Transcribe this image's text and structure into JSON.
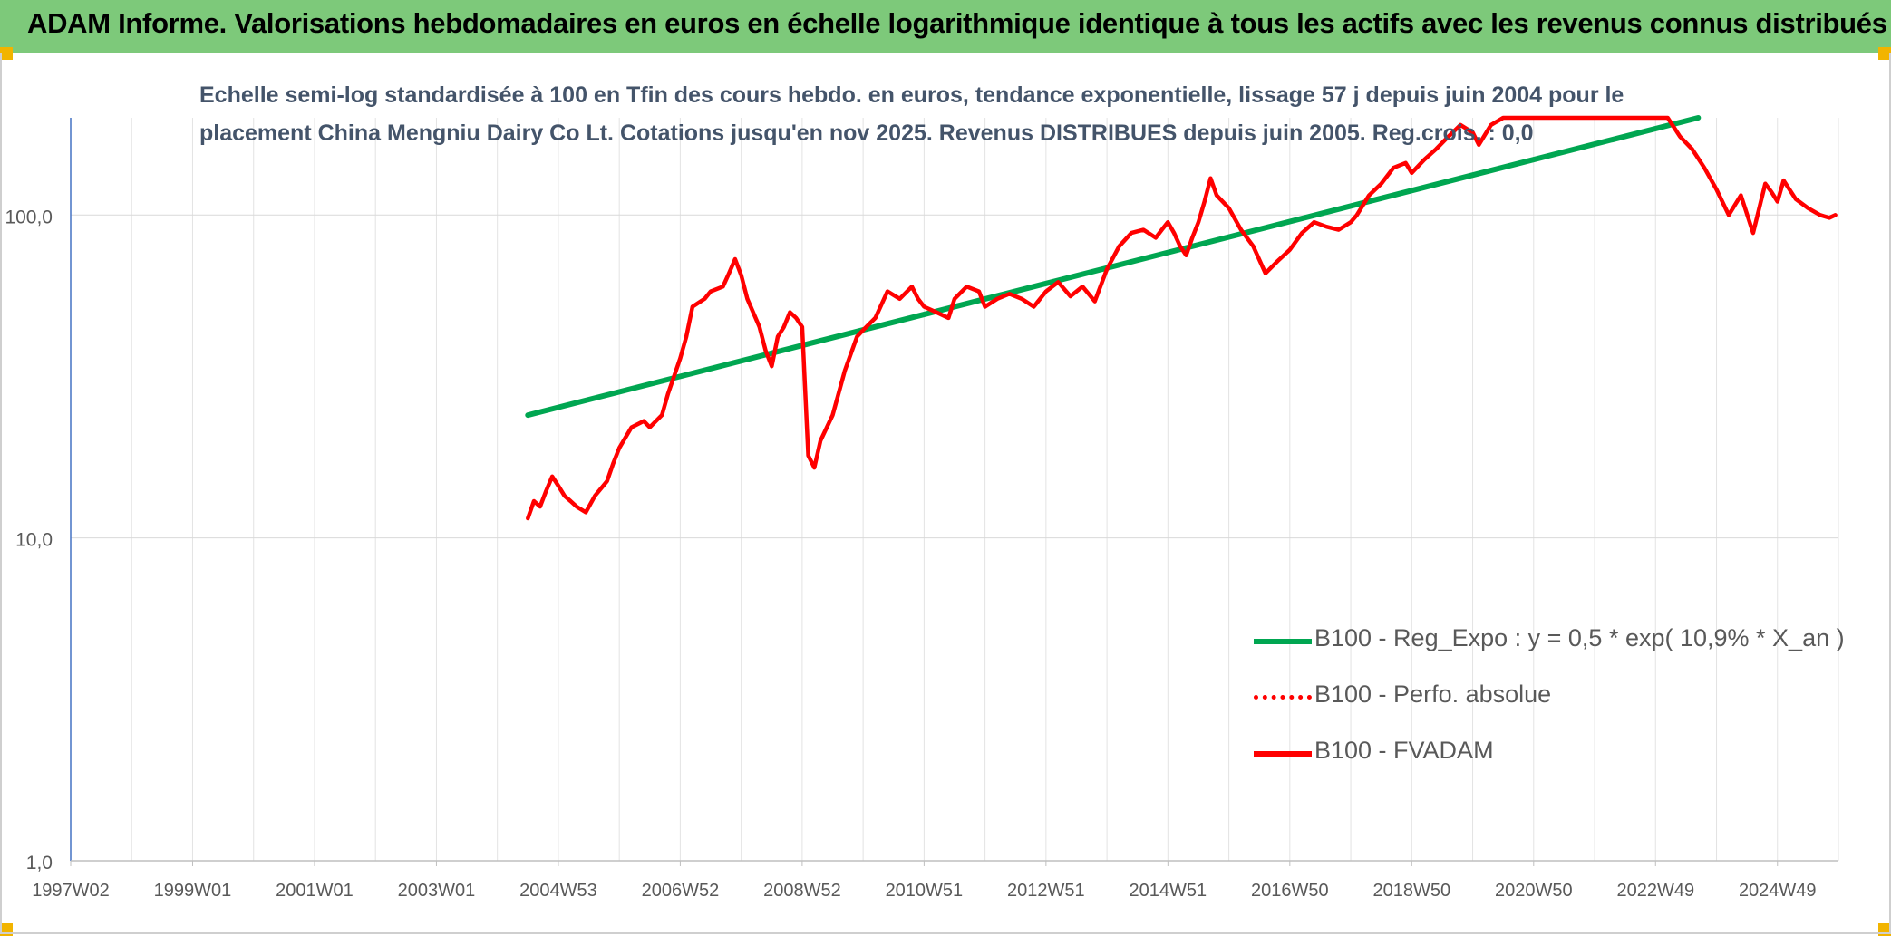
{
  "banner": {
    "title": "ADAM Informe. Valorisations hebdomadaires en euros en échelle logarithmique identique à tous les actifs avec les revenus connus distribués"
  },
  "chart_data": {
    "type": "line",
    "title_line1": "Echelle semi-log standardisée à 100 en Tfin des cours hebdo. en euros, tendance exponentielle, lissage 57 j depuis juin 2004 pour le",
    "title_line2": "placement China Mengniu Dairy Co Lt. Cotations jusqu'en nov 2025. Revenus DISTRIBUES depuis juin 2005. Reg.crois. : 0,0",
    "y_scale": "log",
    "ylim": [
      1,
      200
    ],
    "xlim": [
      1997.0,
      2026.0
    ],
    "y_ticks": [
      {
        "value": 1,
        "label": "1,0"
      },
      {
        "value": 10,
        "label": "10,0"
      },
      {
        "value": 100,
        "label": "100,0"
      }
    ],
    "x_ticks": [
      {
        "value": 1997.0,
        "label": "1997W02"
      },
      {
        "value": 1999.0,
        "label": "1999W01"
      },
      {
        "value": 2001.0,
        "label": "2001W01"
      },
      {
        "value": 2003.0,
        "label": "2003W01"
      },
      {
        "value": 2005.0,
        "label": "2004W53"
      },
      {
        "value": 2007.0,
        "label": "2006W52"
      },
      {
        "value": 2009.0,
        "label": "2008W52"
      },
      {
        "value": 2011.0,
        "label": "2010W51"
      },
      {
        "value": 2013.0,
        "label": "2012W51"
      },
      {
        "value": 2015.0,
        "label": "2014W51"
      },
      {
        "value": 2017.0,
        "label": "2016W50"
      },
      {
        "value": 2019.0,
        "label": "2018W50"
      },
      {
        "value": 2021.0,
        "label": "2020W50"
      },
      {
        "value": 2023.0,
        "label": "2022W49"
      },
      {
        "value": 2025.0,
        "label": "2024W49"
      }
    ],
    "grid": true,
    "legend_position": "bottom-right",
    "series": [
      {
        "name": "B100 - Reg_Expo : y = 0,5 * exp( 10,9% *  X_an )",
        "color": "#00a651",
        "style": "solid",
        "x": [
          2004.5,
          2023.7
        ],
        "y": [
          24,
          200
        ]
      },
      {
        "name": "B100 - Perfo. absolue",
        "color": "#ff0000",
        "style": "dotted",
        "x": [],
        "y": []
      },
      {
        "name": "B100 - FVADAM",
        "color": "#ff0000",
        "style": "solid",
        "x": [
          2004.5,
          2004.6,
          2004.7,
          2004.8,
          2004.9,
          2005.0,
          2005.1,
          2005.2,
          2005.3,
          2005.45,
          2005.6,
          2005.8,
          2005.9,
          2006.0,
          2006.2,
          2006.4,
          2006.5,
          2006.7,
          2006.8,
          2007.0,
          2007.1,
          2007.2,
          2007.4,
          2007.5,
          2007.7,
          2007.8,
          2007.9,
          2008.0,
          2008.1,
          2008.3,
          2008.4,
          2008.5,
          2008.6,
          2008.7,
          2008.8,
          2008.9,
          2009.0,
          2009.1,
          2009.2,
          2009.3,
          2009.5,
          2009.7,
          2009.9,
          2010.0,
          2010.2,
          2010.4,
          2010.6,
          2010.8,
          2010.9,
          2011.0,
          2011.2,
          2011.4,
          2011.5,
          2011.7,
          2011.9,
          2012.0,
          2012.2,
          2012.4,
          2012.6,
          2012.8,
          2013.0,
          2013.2,
          2013.4,
          2013.6,
          2013.8,
          2014.0,
          2014.2,
          2014.4,
          2014.6,
          2014.8,
          2014.9,
          2015.0,
          2015.1,
          2015.2,
          2015.3,
          2015.4,
          2015.5,
          2015.6,
          2015.7,
          2015.8,
          2016.0,
          2016.2,
          2016.4,
          2016.6,
          2016.8,
          2017.0,
          2017.2,
          2017.4,
          2017.6,
          2017.8,
          2018.0,
          2018.1,
          2018.3,
          2018.5,
          2018.7,
          2018.9,
          2019.0,
          2019.2,
          2019.4,
          2019.6,
          2019.8,
          2020.0,
          2020.1,
          2020.3,
          2020.5,
          2020.6,
          2020.8,
          2020.9,
          2021.0,
          2021.2,
          2021.4,
          2021.6,
          2021.8,
          2022.0,
          2022.2,
          2022.4,
          2022.6,
          2022.8,
          2023.0,
          2023.2,
          2023.4,
          2023.6,
          2023.8,
          2024.0,
          2024.2,
          2024.4,
          2024.6,
          2024.8,
          2024.9,
          2025.0,
          2025.1,
          2025.3,
          2025.5,
          2025.7,
          2025.85,
          2025.95
        ],
        "y": [
          11.5,
          13,
          12.5,
          14,
          15.5,
          14.5,
          13.5,
          13,
          12.5,
          12,
          13.5,
          15,
          17,
          19,
          22,
          23,
          22,
          24,
          28,
          36,
          42,
          52,
          55,
          58,
          60,
          66,
          73,
          65,
          55,
          45,
          38,
          34,
          42,
          45,
          50,
          48,
          45,
          18,
          16.5,
          20,
          24,
          33,
          42,
          44,
          48,
          58,
          55,
          60,
          55,
          52,
          50,
          48,
          55,
          60,
          58,
          52,
          55,
          57,
          55,
          52,
          58,
          62,
          56,
          60,
          54,
          68,
          80,
          88,
          90,
          85,
          90,
          95,
          88,
          80,
          75,
          85,
          95,
          110,
          130,
          115,
          105,
          90,
          80,
          66,
          72,
          78,
          88,
          95,
          92,
          90,
          95,
          100,
          115,
          125,
          140,
          145,
          135,
          148,
          160,
          175,
          190,
          180,
          165,
          190,
          200,
          200,
          200,
          200,
          200,
          200,
          200,
          200,
          200,
          200,
          200,
          200,
          200,
          200,
          200,
          200,
          175,
          160,
          140,
          120,
          100,
          115,
          88,
          125,
          118,
          110,
          128,
          112,
          105,
          100,
          98,
          100
        ]
      }
    ]
  }
}
